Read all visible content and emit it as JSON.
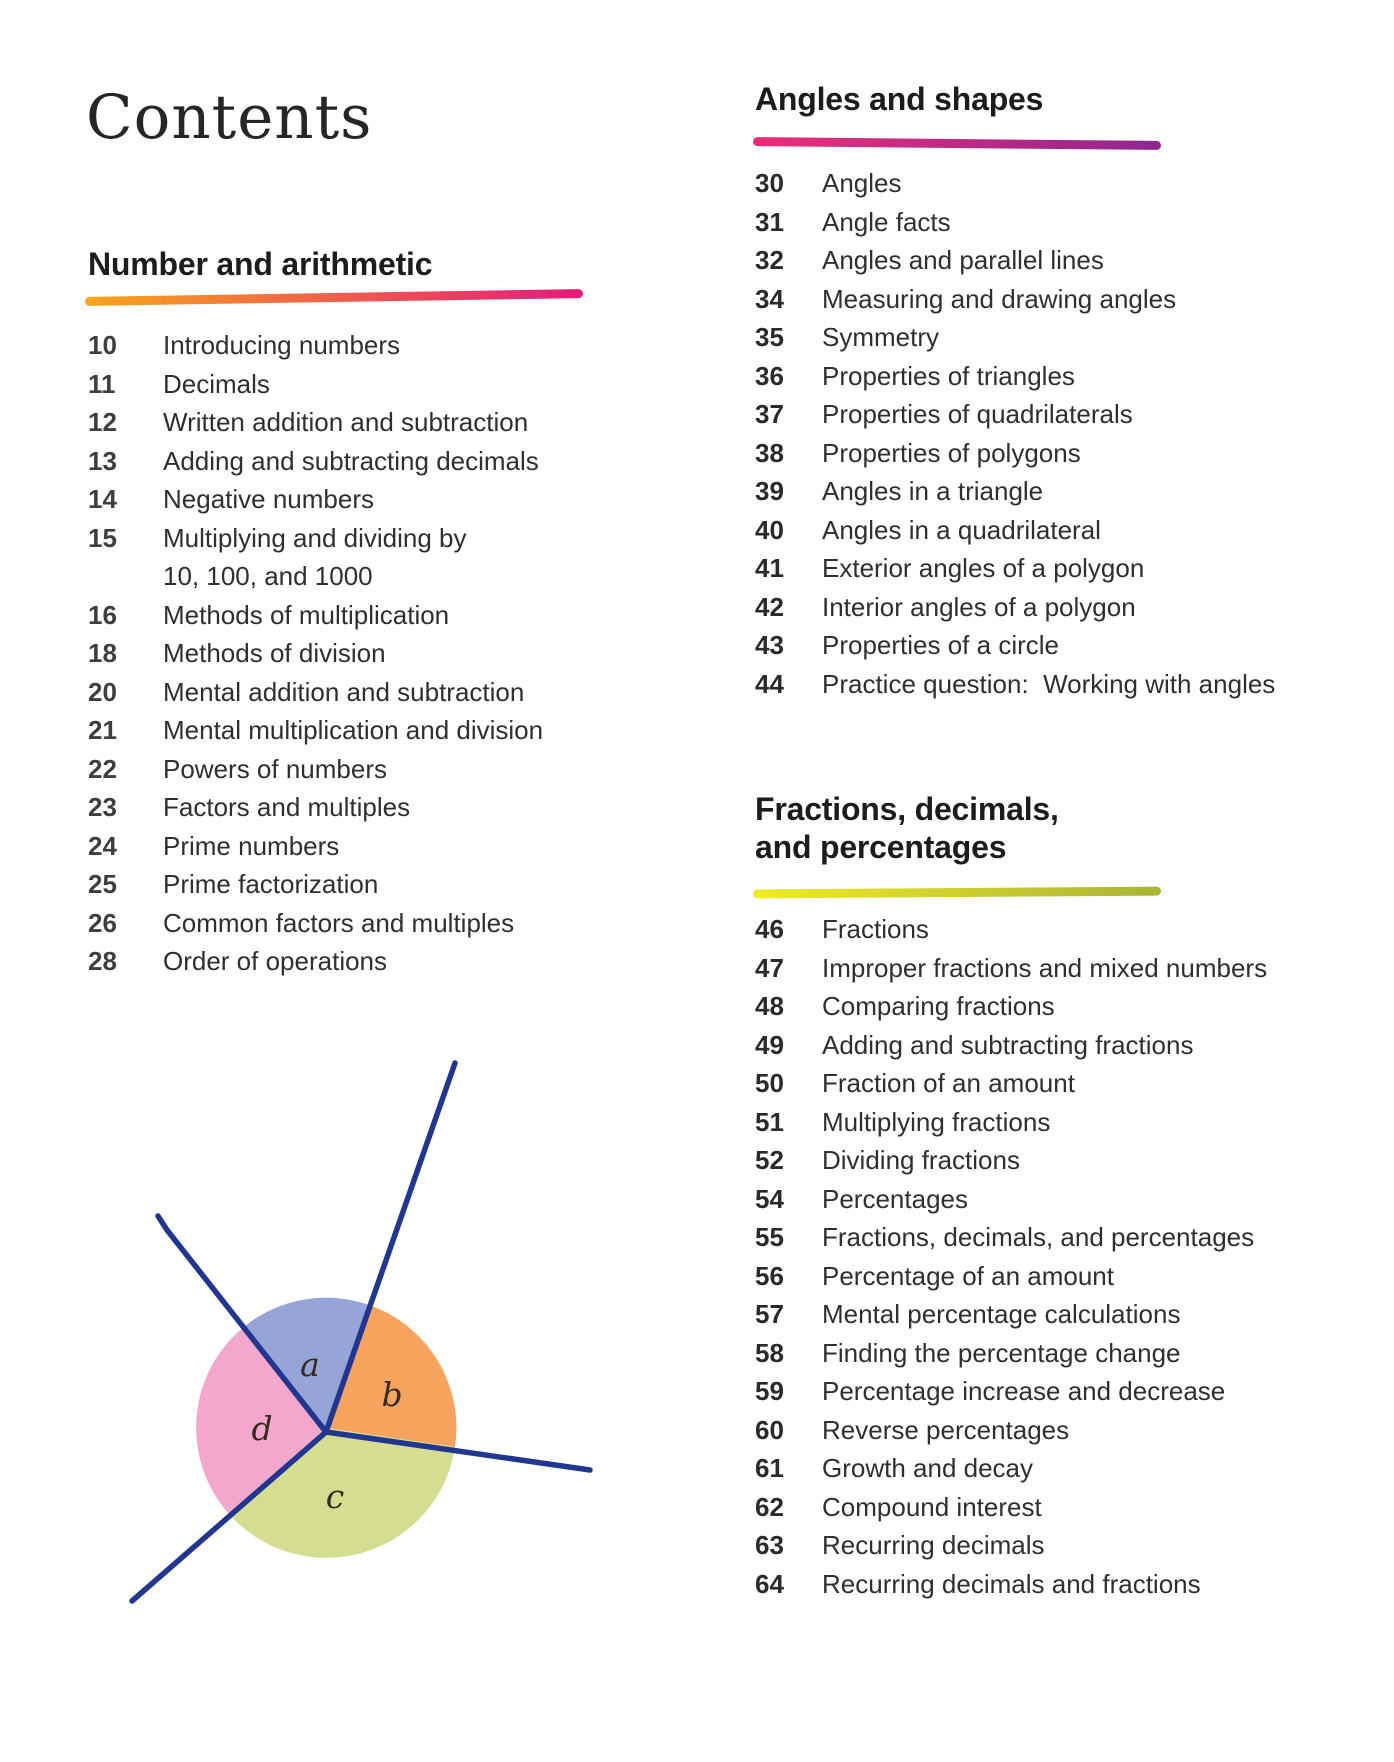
{
  "page": {
    "title": "Contents"
  },
  "sections": [
    {
      "id": "number-and-arithmetic",
      "heading": "Number and arithmetic",
      "rule_colors": [
        "#f8a51b",
        "#e5197b"
      ],
      "entries": [
        {
          "page": "10",
          "title": "Introducing numbers"
        },
        {
          "page": "11",
          "title": "Decimals"
        },
        {
          "page": "12",
          "title": "Written addition and subtraction"
        },
        {
          "page": "13",
          "title": "Adding and subtracting decimals"
        },
        {
          "page": "14",
          "title": "Negative numbers"
        },
        {
          "page": "15",
          "title": "Multiplying and dividing by\n10, 100, and 1000"
        },
        {
          "page": "16",
          "title": "Methods of multiplication"
        },
        {
          "page": "18",
          "title": "Methods of division"
        },
        {
          "page": "20",
          "title": "Mental addition and subtraction"
        },
        {
          "page": "21",
          "title": "Mental multiplication and division"
        },
        {
          "page": "22",
          "title": "Powers of numbers"
        },
        {
          "page": "23",
          "title": "Factors and multiples"
        },
        {
          "page": "24",
          "title": "Prime numbers"
        },
        {
          "page": "25",
          "title": "Prime factorization"
        },
        {
          "page": "26",
          "title": "Common factors and multiples"
        },
        {
          "page": "28",
          "title": "Order of operations"
        }
      ]
    },
    {
      "id": "angles-and-shapes",
      "heading": "Angles and shapes",
      "rule_colors": [
        "#ee2d78",
        "#8f2791"
      ],
      "entries": [
        {
          "page": "30",
          "title": "Angles"
        },
        {
          "page": "31",
          "title": "Angle facts"
        },
        {
          "page": "32",
          "title": "Angles and parallel lines"
        },
        {
          "page": "34",
          "title": "Measuring and drawing angles"
        },
        {
          "page": "35",
          "title": "Symmetry"
        },
        {
          "page": "36",
          "title": "Properties of triangles"
        },
        {
          "page": "37",
          "title": "Properties of quadrilaterals"
        },
        {
          "page": "38",
          "title": "Properties of polygons"
        },
        {
          "page": "39",
          "title": "Angles in a triangle"
        },
        {
          "page": "40",
          "title": "Angles in a quadrilateral"
        },
        {
          "page": "41",
          "title": "Exterior angles of a polygon"
        },
        {
          "page": "42",
          "title": "Interior angles of a polygon"
        },
        {
          "page": "43",
          "title": "Properties of a circle"
        },
        {
          "page": "44",
          "title": "Practice question:  Working with angles"
        }
      ]
    },
    {
      "id": "fractions-decimals-percentages",
      "heading": "Fractions, decimals,\nand percentages",
      "rule_colors": [
        "#f2ea25",
        "#a8b435"
      ],
      "entries": [
        {
          "page": "46",
          "title": "Fractions"
        },
        {
          "page": "47",
          "title": "Improper fractions and mixed numbers"
        },
        {
          "page": "48",
          "title": "Comparing fractions"
        },
        {
          "page": "49",
          "title": "Adding and subtracting fractions"
        },
        {
          "page": "50",
          "title": "Fraction of an amount"
        },
        {
          "page": "51",
          "title": "Multiplying fractions"
        },
        {
          "page": "52",
          "title": "Dividing fractions"
        },
        {
          "page": "54",
          "title": "Percentages"
        },
        {
          "page": "55",
          "title": "Fractions, decimals, and percentages"
        },
        {
          "page": "56",
          "title": "Percentage of an amount"
        },
        {
          "page": "57",
          "title": "Mental percentage calculations"
        },
        {
          "page": "58",
          "title": "Finding the percentage change"
        },
        {
          "page": "59",
          "title": "Percentage increase and decrease"
        },
        {
          "page": "60",
          "title": "Reverse percentages"
        },
        {
          "page": "61",
          "title": "Growth and decay"
        },
        {
          "page": "62",
          "title": "Compound interest"
        },
        {
          "page": "63",
          "title": "Recurring decimals"
        },
        {
          "page": "64",
          "title": "Recurring decimals and fractions"
        }
      ]
    }
  ],
  "illustration": {
    "description": "angles-at-a-point-diagram",
    "labels": {
      "a": "a",
      "b": "b",
      "c": "c",
      "d": "d"
    },
    "sector_colors": {
      "a": "#96a4d8",
      "b": "#f7a45e",
      "c": "#d5dd90",
      "d": "#f3a7cd"
    },
    "ray_color": "#21368f",
    "label_color": "#382a1c"
  }
}
